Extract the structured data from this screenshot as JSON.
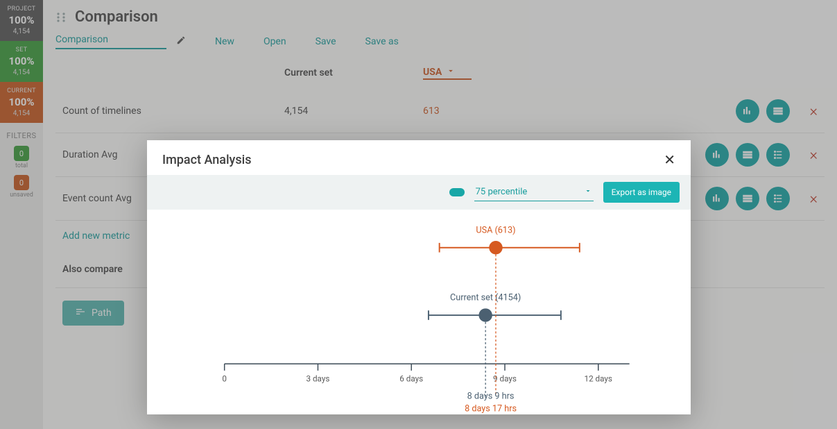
{
  "colors": {
    "teal": "#18a7a7",
    "teal_text": "#1a9e9e",
    "orange": "#ce5a25",
    "slate": "#4b6071",
    "axis": "#3b4a56",
    "text": "#4a4a4a"
  },
  "leftbar": {
    "project": {
      "label": "PROJECT",
      "percent": "100%",
      "count": "4,154"
    },
    "set": {
      "label": "SET",
      "percent": "100%",
      "count": "4,154"
    },
    "current": {
      "label": "CURRENT",
      "percent": "100%",
      "count": "4,154"
    },
    "filters": {
      "title": "FILTERS",
      "total": {
        "value": "0",
        "label": "total"
      },
      "unsaved": {
        "value": "0",
        "label": "unsaved"
      }
    }
  },
  "page": {
    "title": "Comparison",
    "name_input": "Comparison",
    "actions": {
      "new": "New",
      "open": "Open",
      "save": "Save",
      "save_as": "Save as"
    }
  },
  "table": {
    "head": {
      "col_current": "Current set",
      "col_compare": "USA"
    },
    "rows": [
      {
        "metric": "Count of timelines",
        "current": "4,154",
        "compare": "613",
        "icons": 2
      },
      {
        "metric": "Duration Avg",
        "current": "",
        "compare": "",
        "icons": 3
      },
      {
        "metric": "Event count Avg",
        "current": "",
        "compare": "",
        "icons": 3
      }
    ],
    "add_metric": "Add new metric",
    "also_compare": "Also compare",
    "path_btn": "Path"
  },
  "modal": {
    "title": "Impact Analysis",
    "percentile": "75 percentile",
    "export": "Export as image",
    "series": {
      "usa": {
        "label": "USA (613)",
        "color": "#d65a21",
        "point": 8.71,
        "low": 6.9,
        "high": 11.4,
        "y": 48
      },
      "current": {
        "label": "Current set (4154)",
        "color": "#4b6071",
        "point": 8.38,
        "low": 6.55,
        "high": 10.8,
        "y": 148
      }
    },
    "axis": {
      "x0": 80,
      "x1": 680,
      "min": 0,
      "max": 13,
      "ticks": [
        {
          "v": 0,
          "label": "0"
        },
        {
          "v": 3,
          "label": "3 days"
        },
        {
          "v": 6,
          "label": "6 days"
        },
        {
          "v": 9,
          "label": "9 days"
        },
        {
          "v": 12,
          "label": "12 days"
        }
      ],
      "y": 220
    },
    "callouts": {
      "current": "8 days 9 hrs",
      "usa": "8 days 17 hrs"
    }
  }
}
